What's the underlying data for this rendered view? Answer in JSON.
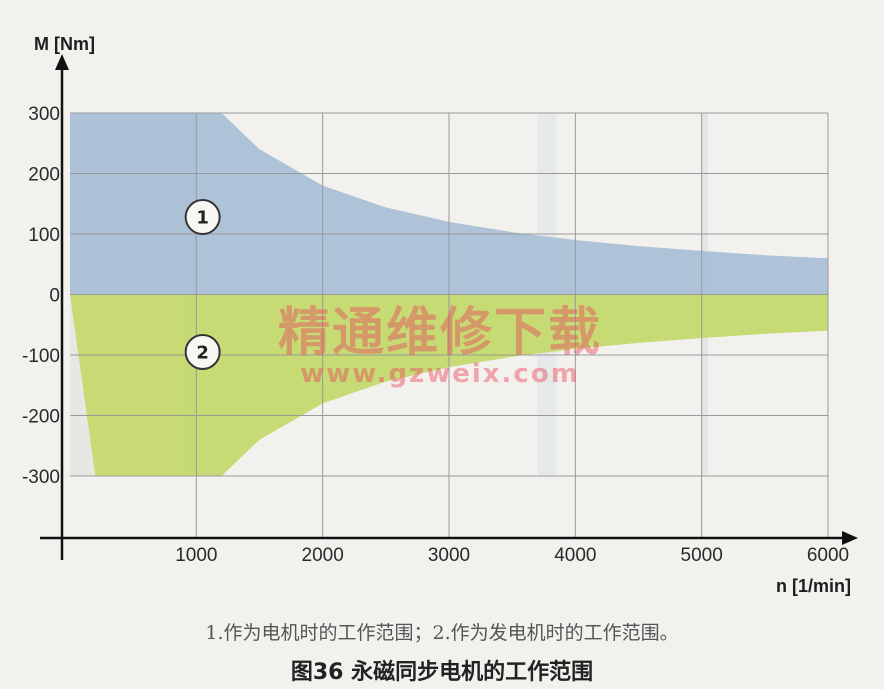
{
  "chart_data": {
    "type": "area",
    "xlabel": "n [1/min]",
    "ylabel": "M [Nm]",
    "xlim": [
      0,
      6000
    ],
    "ylim": [
      -300,
      300
    ],
    "x_ticks": [
      "1000",
      "2000",
      "3000",
      "4000",
      "5000",
      "6000"
    ],
    "y_ticks": [
      "300",
      "200",
      "100",
      "0",
      "-100",
      "-200",
      "-300"
    ],
    "grid": true,
    "series": [
      {
        "name": "1",
        "color": "#a8bfd6",
        "x": [
          0,
          1200,
          1500,
          2000,
          2500,
          3000,
          3500,
          4000,
          4500,
          5000,
          5500,
          6000
        ],
        "y": [
          300,
          300,
          240,
          180,
          144,
          120,
          103,
          90,
          80,
          72,
          65,
          60
        ]
      },
      {
        "name": "2",
        "color": "#c3d96a",
        "x": [
          0,
          200,
          1200,
          1500,
          2000,
          2500,
          3000,
          3500,
          4000,
          4500,
          5000,
          5500,
          6000
        ],
        "y": [
          0,
          -300,
          -300,
          -240,
          -180,
          -144,
          -120,
          -103,
          -90,
          -80,
          -72,
          -65,
          -60
        ]
      }
    ]
  },
  "watermark": {
    "line1": "精通维修下载",
    "line2": "www.gzweix.com"
  },
  "caption": {
    "note": "1.作为电机时的工作范围；2.作为发电机时的工作范围。",
    "title": "图36 永磁同步电机的工作范围"
  }
}
